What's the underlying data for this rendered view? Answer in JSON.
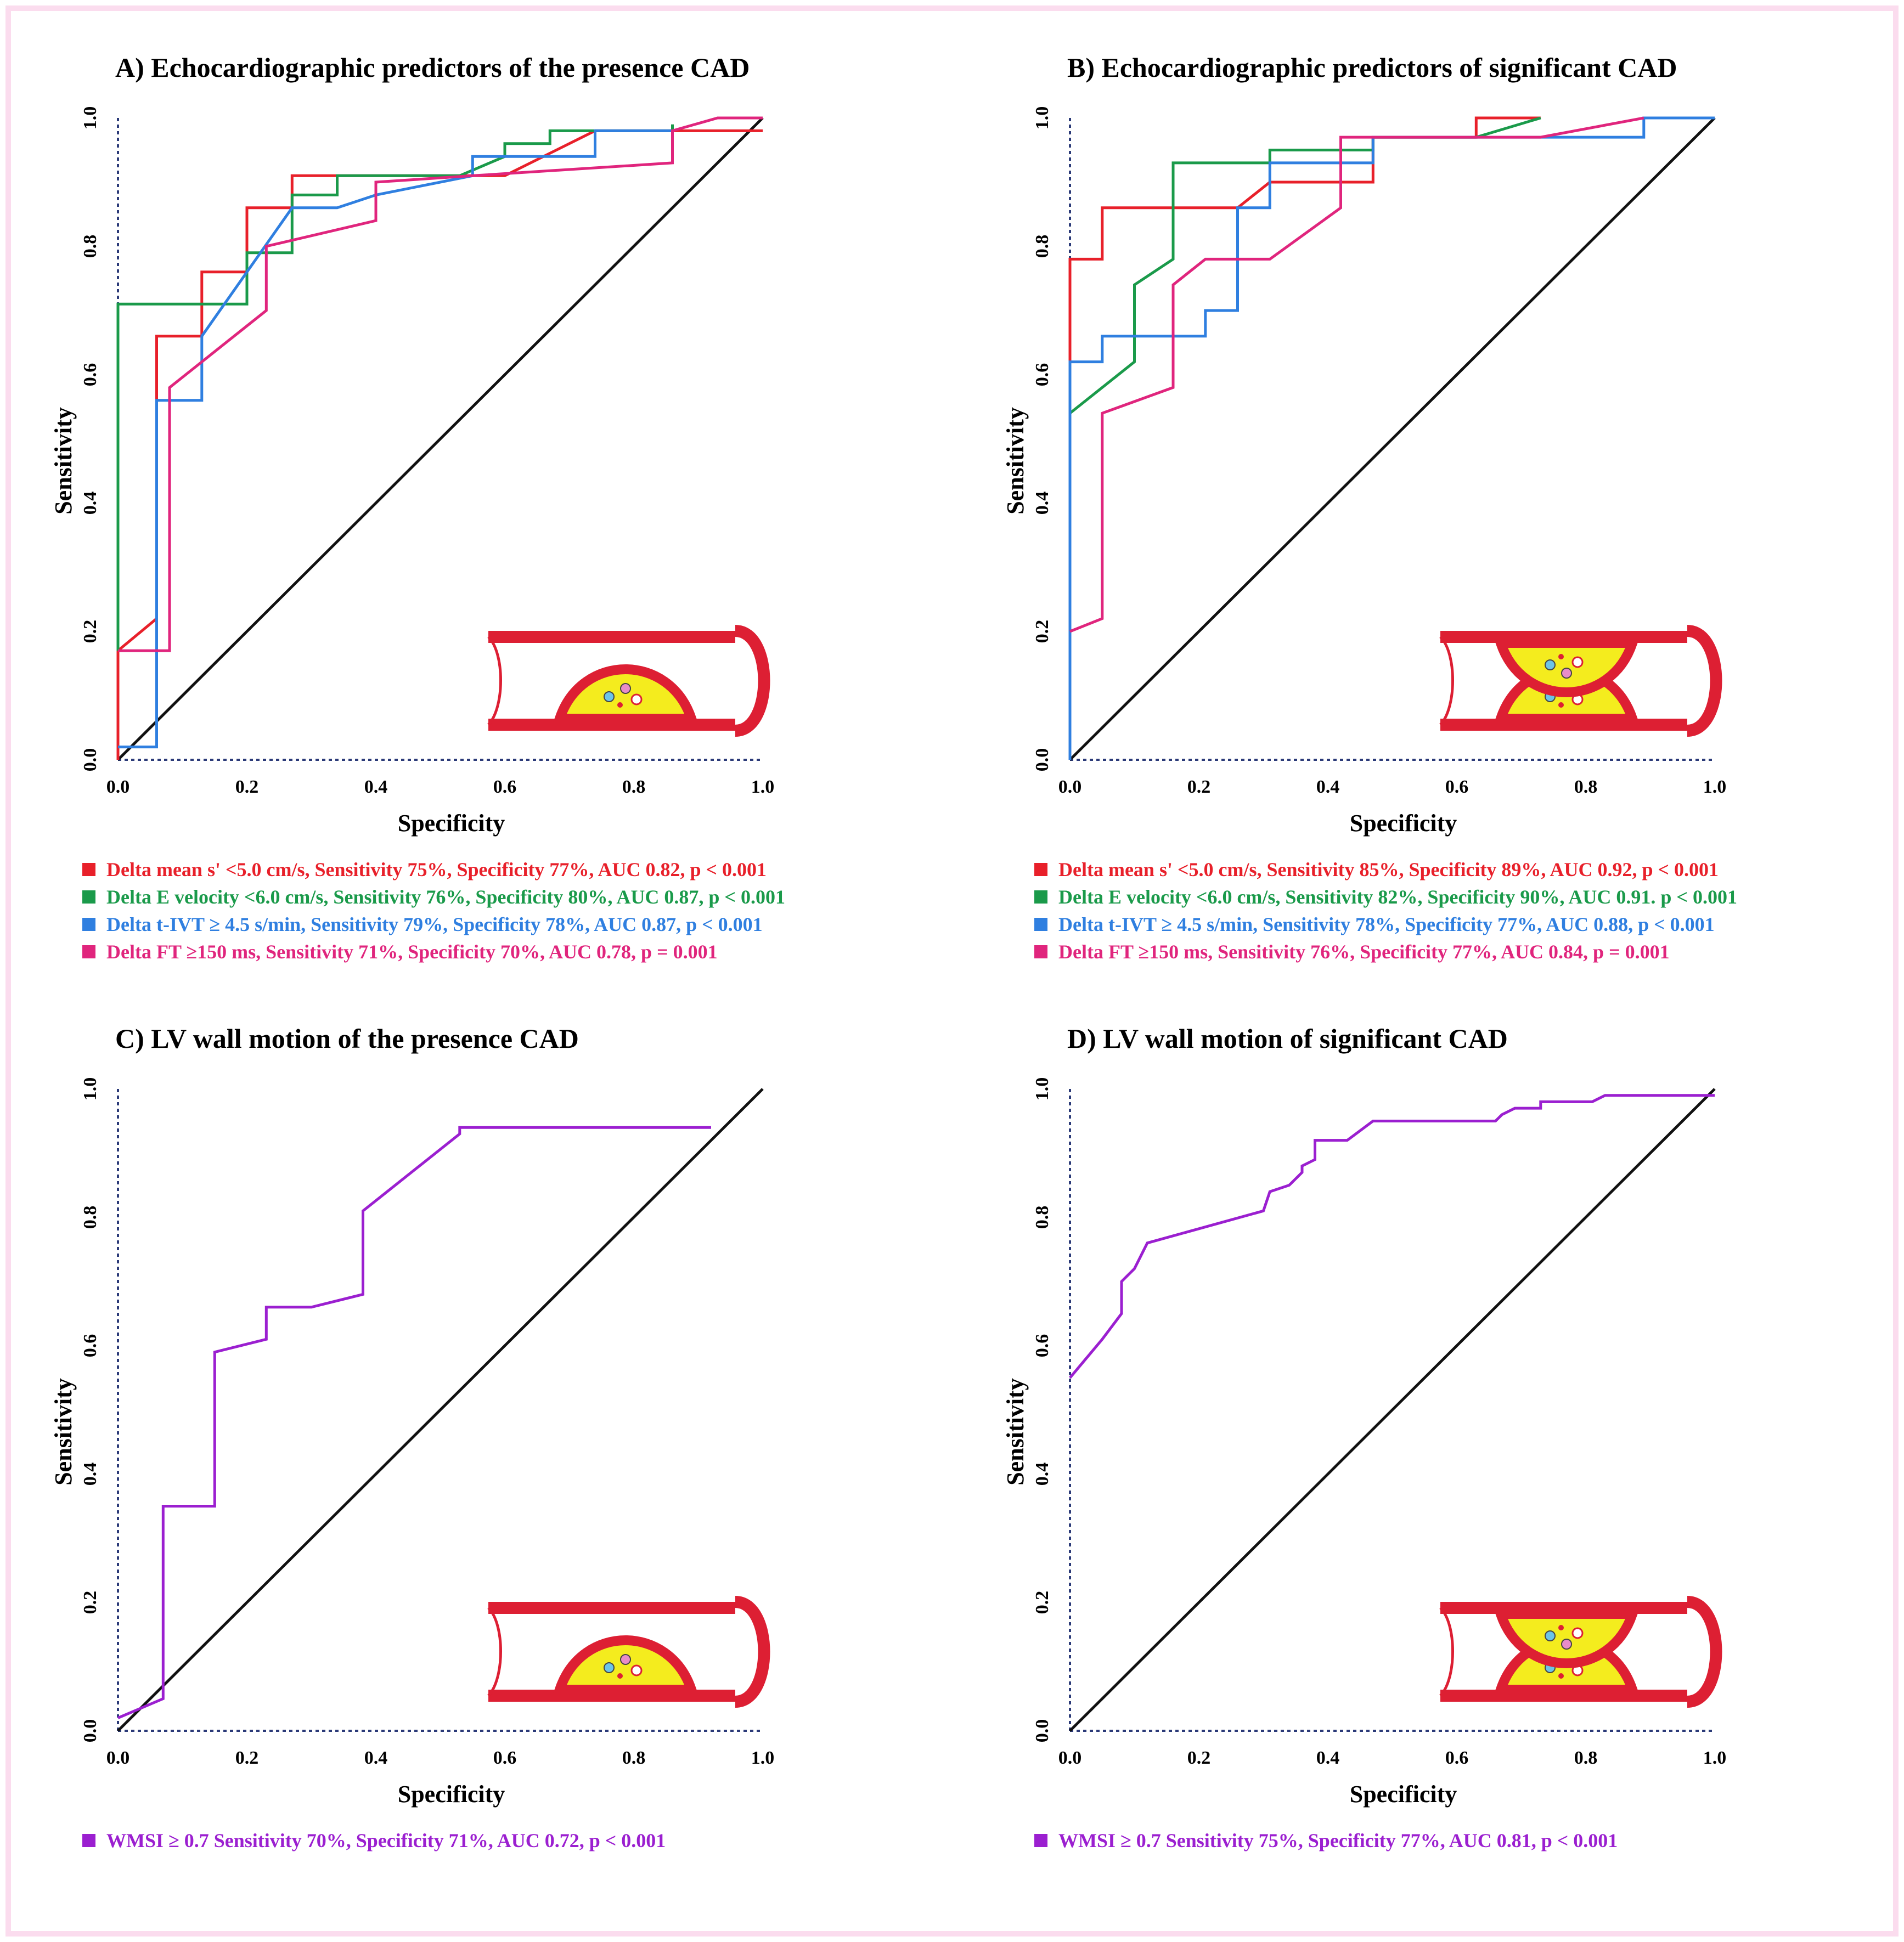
{
  "chart_data": [
    {
      "type": "line",
      "panel_label": "A)",
      "title": "A) Echocardiographic predictors of the presence CAD",
      "xlabel": "Specificity",
      "ylabel": "Sensitivity",
      "xlim": [
        0,
        1
      ],
      "ylim": [
        0,
        1
      ],
      "xticks": [
        "0.0",
        "0.2",
        "0.4",
        "0.6",
        "0.8",
        "1.0"
      ],
      "yticks": [
        "0.0",
        "0.2",
        "0.4",
        "0.6",
        "0.8",
        "1.0"
      ],
      "diagonal": true,
      "icon": "single-plaque",
      "series": [
        {
          "name": "Delta mean s' <5.0 cm/s",
          "color": "#e8202a",
          "points": [
            [
              0,
              0
            ],
            [
              0,
              0.17
            ],
            [
              0.06,
              0.22
            ],
            [
              0.06,
              0.66
            ],
            [
              0.13,
              0.66
            ],
            [
              0.13,
              0.76
            ],
            [
              0.2,
              0.76
            ],
            [
              0.2,
              0.86
            ],
            [
              0.27,
              0.86
            ],
            [
              0.27,
              0.91
            ],
            [
              0.34,
              0.91
            ],
            [
              0.6,
              0.91
            ],
            [
              0.74,
              0.98
            ],
            [
              0.85,
              0.98
            ],
            [
              0.86,
              0.98
            ],
            [
              1,
              0.98
            ]
          ]
        },
        {
          "name": "Delta E velocity <6.0 cm/s",
          "color": "#1a9a4a",
          "points": [
            [
              0,
              0.17
            ],
            [
              0,
              0.71
            ],
            [
              0.2,
              0.71
            ],
            [
              0.2,
              0.79
            ],
            [
              0.27,
              0.79
            ],
            [
              0.27,
              0.88
            ],
            [
              0.34,
              0.88
            ],
            [
              0.34,
              0.91
            ],
            [
              0.53,
              0.91
            ],
            [
              0.6,
              0.94
            ],
            [
              0.6,
              0.96
            ],
            [
              0.67,
              0.96
            ],
            [
              0.67,
              0.98
            ],
            [
              0.74,
              0.98
            ],
            [
              0.86,
              0.98
            ],
            [
              0.86,
              0.99
            ]
          ]
        },
        {
          "name": "Delta t-IVT ≥ 4.5 s/min",
          "color": "#2f7fe0",
          "points": [
            [
              0,
              0.02
            ],
            [
              0.06,
              0.02
            ],
            [
              0.06,
              0.56
            ],
            [
              0.13,
              0.56
            ],
            [
              0.13,
              0.66
            ],
            [
              0.27,
              0.86
            ],
            [
              0.34,
              0.86
            ],
            [
              0.4,
              0.88
            ],
            [
              0.55,
              0.91
            ],
            [
              0.55,
              0.94
            ],
            [
              0.74,
              0.94
            ],
            [
              0.74,
              0.98
            ],
            [
              0.86,
              0.98
            ]
          ]
        },
        {
          "name": "Delta FT ≥150 ms",
          "color": "#e0257d",
          "points": [
            [
              0,
              0.17
            ],
            [
              0.08,
              0.17
            ],
            [
              0.08,
              0.58
            ],
            [
              0.23,
              0.7
            ],
            [
              0.23,
              0.8
            ],
            [
              0.4,
              0.84
            ],
            [
              0.4,
              0.9
            ],
            [
              0.55,
              0.91
            ],
            [
              0.86,
              0.93
            ],
            [
              0.86,
              0.98
            ],
            [
              0.93,
              1.0
            ],
            [
              1,
              1.0
            ]
          ]
        }
      ],
      "legend": [
        {
          "color": "#e8202a",
          "text": "Delta mean s' <5.0 cm/s, Sensitivity 75%, Specificity 77%, AUC 0.82, p < 0.001"
        },
        {
          "color": "#1a9a4a",
          "text": "Delta E velocity <6.0 cm/s, Sensitivity 76%, Specificity 80%, AUC 0.87, p < 0.001"
        },
        {
          "color": "#2f7fe0",
          "text": "Delta t-IVT ≥ 4.5 s/min, Sensitivity 79%, Specificity 78%, AUC 0.87, p < 0.001"
        },
        {
          "color": "#e0257d",
          "text": "Delta FT ≥150 ms, Sensitivity 71%, Specificity 70%, AUC 0.78, p = 0.001"
        }
      ]
    },
    {
      "type": "line",
      "panel_label": "B)",
      "title": "B) Echocardiographic predictors of significant CAD",
      "xlabel": "Specificity",
      "ylabel": "Sensitivity",
      "xlim": [
        0,
        1
      ],
      "ylim": [
        0,
        1
      ],
      "xticks": [
        "0.0",
        "0.2",
        "0.4",
        "0.6",
        "0.8",
        "1.0"
      ],
      "yticks": [
        "0.0",
        "0.2",
        "0.4",
        "0.6",
        "0.8",
        "1.0"
      ],
      "diagonal": true,
      "icon": "double-plaque",
      "series": [
        {
          "name": "Delta mean s' <5.0 cm/s",
          "color": "#e8202a",
          "points": [
            [
              0,
              0.62
            ],
            [
              0,
              0.78
            ],
            [
              0.05,
              0.78
            ],
            [
              0.05,
              0.86
            ],
            [
              0.26,
              0.86
            ],
            [
              0.31,
              0.9
            ],
            [
              0.47,
              0.9
            ],
            [
              0.47,
              0.97
            ],
            [
              0.63,
              0.97
            ],
            [
              0.63,
              1.0
            ],
            [
              0.73,
              1.0
            ]
          ]
        },
        {
          "name": "Delta E velocity <6.0 cm/s",
          "color": "#1a9a4a",
          "points": [
            [
              0,
              0.54
            ],
            [
              0.1,
              0.62
            ],
            [
              0.1,
              0.74
            ],
            [
              0.16,
              0.78
            ],
            [
              0.16,
              0.93
            ],
            [
              0.31,
              0.93
            ],
            [
              0.31,
              0.95
            ],
            [
              0.47,
              0.95
            ],
            [
              0.47,
              0.97
            ],
            [
              0.63,
              0.97
            ],
            [
              0.73,
              1.0
            ]
          ]
        },
        {
          "name": "Delta t-IVT ≥ 4.5 s/min",
          "color": "#2f7fe0",
          "points": [
            [
              0,
              0
            ],
            [
              0,
              0.62
            ],
            [
              0.05,
              0.62
            ],
            [
              0.05,
              0.66
            ],
            [
              0.21,
              0.66
            ],
            [
              0.21,
              0.7
            ],
            [
              0.26,
              0.7
            ],
            [
              0.26,
              0.86
            ],
            [
              0.31,
              0.86
            ],
            [
              0.31,
              0.93
            ],
            [
              0.47,
              0.93
            ],
            [
              0.47,
              0.97
            ],
            [
              0.89,
              0.97
            ],
            [
              0.89,
              1.0
            ],
            [
              1,
              1.0
            ]
          ]
        },
        {
          "name": "Delta FT ≥150 ms",
          "color": "#e0257d",
          "points": [
            [
              0,
              0.2
            ],
            [
              0.05,
              0.22
            ],
            [
              0.05,
              0.54
            ],
            [
              0.16,
              0.58
            ],
            [
              0.16,
              0.74
            ],
            [
              0.21,
              0.78
            ],
            [
              0.31,
              0.78
            ],
            [
              0.42,
              0.86
            ],
            [
              0.42,
              0.97
            ],
            [
              0.73,
              0.97
            ],
            [
              0.89,
              1.0
            ]
          ]
        }
      ],
      "legend": [
        {
          "color": "#e8202a",
          "text": "Delta mean s' <5.0 cm/s, Sensitivity 85%, Specificity 89%, AUC 0.92, p < 0.001"
        },
        {
          "color": "#1a9a4a",
          "text": "Delta E velocity <6.0 cm/s, Sensitivity 82%, Specificity 90%, AUC 0.91. p < 0.001"
        },
        {
          "color": "#2f7fe0",
          "text": "Delta t-IVT ≥ 4.5 s/min, Sensitivity 78%, Specificity 77%, AUC 0.88, p < 0.001"
        },
        {
          "color": "#e0257d",
          "text": "Delta FT ≥150 ms, Sensitivity 76%, Specificity 77%, AUC 0.84, p = 0.001"
        }
      ]
    },
    {
      "type": "line",
      "panel_label": "C)",
      "title": "C) LV wall motion of the presence CAD",
      "xlabel": "Specificity",
      "ylabel": "Sensitivity",
      "xlim": [
        0,
        1
      ],
      "ylim": [
        0,
        1
      ],
      "xticks": [
        "0.0",
        "0.2",
        "0.4",
        "0.6",
        "0.8",
        "1.0"
      ],
      "yticks": [
        "0.0",
        "0.2",
        "0.4",
        "0.6",
        "0.8",
        "1.0"
      ],
      "diagonal": true,
      "icon": "single-plaque",
      "series": [
        {
          "name": "WMSI ≥ 0.7",
          "color": "#9b1fd0",
          "points": [
            [
              0,
              0.02
            ],
            [
              0.07,
              0.05
            ],
            [
              0.07,
              0.35
            ],
            [
              0.15,
              0.35
            ],
            [
              0.15,
              0.59
            ],
            [
              0.23,
              0.61
            ],
            [
              0.23,
              0.66
            ],
            [
              0.3,
              0.66
            ],
            [
              0.38,
              0.68
            ],
            [
              0.38,
              0.81
            ],
            [
              0.53,
              0.93
            ],
            [
              0.53,
              0.94
            ],
            [
              0.92,
              0.94
            ]
          ]
        }
      ],
      "legend": [
        {
          "color": "#9b1fd0",
          "text": "WMSI ≥ 0.7 Sensitivity 70%, Specificity 71%, AUC 0.72, p < 0.001"
        }
      ]
    },
    {
      "type": "line",
      "panel_label": "D)",
      "title": "D) LV wall motion of significant CAD",
      "xlabel": "Specificity",
      "ylabel": "Sensitivity",
      "xlim": [
        0,
        1
      ],
      "ylim": [
        0,
        1
      ],
      "xticks": [
        "0.0",
        "0.2",
        "0.4",
        "0.6",
        "0.8",
        "1.0"
      ],
      "yticks": [
        "0.0",
        "0.2",
        "0.4",
        "0.6",
        "0.8",
        "1.0"
      ],
      "diagonal": true,
      "icon": "double-plaque",
      "series": [
        {
          "name": "WMSI ≥ 0.7",
          "color": "#9b1fd0",
          "points": [
            [
              0,
              0.55
            ],
            [
              0.05,
              0.61
            ],
            [
              0.08,
              0.65
            ],
            [
              0.08,
              0.7
            ],
            [
              0.1,
              0.72
            ],
            [
              0.12,
              0.76
            ],
            [
              0.3,
              0.81
            ],
            [
              0.31,
              0.84
            ],
            [
              0.34,
              0.85
            ],
            [
              0.36,
              0.87
            ],
            [
              0.36,
              0.88
            ],
            [
              0.38,
              0.89
            ],
            [
              0.38,
              0.92
            ],
            [
              0.43,
              0.92
            ],
            [
              0.47,
              0.95
            ],
            [
              0.5,
              0.95
            ],
            [
              0.66,
              0.95
            ],
            [
              0.67,
              0.96
            ],
            [
              0.69,
              0.97
            ],
            [
              0.73,
              0.97
            ],
            [
              0.73,
              0.98
            ],
            [
              0.81,
              0.98
            ],
            [
              0.83,
              0.99
            ],
            [
              1,
              0.99
            ]
          ]
        }
      ],
      "legend": [
        {
          "color": "#9b1fd0",
          "text": "WMSI ≥ 0.7 Sensitivity 75%, Specificity 77%, AUC 0.81,  p < 0.001"
        }
      ]
    }
  ]
}
